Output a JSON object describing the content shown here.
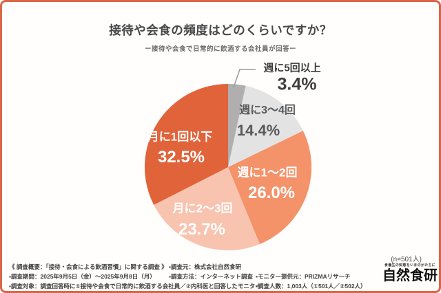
{
  "header": {
    "title": "接待や会食の頻度はどのくらいですか？",
    "subtitle": "ー接待や会食で日常的に飲酒する会社員が回答ー"
  },
  "chart_data": {
    "type": "pie",
    "title": "接待や会食の頻度はどのくらいですか？",
    "subtitle": "ー接待や会食で日常的に飲酒する会社員が回答ー",
    "sample_note": "(n=501人)",
    "start_angle_deg_from_12_oclock": 0,
    "direction": "clockwise",
    "segments": [
      {
        "label": "週に5回以上",
        "value": 3.4,
        "display": "3.4%",
        "color": "#b0aeae",
        "label_placement": "outside-callout"
      },
      {
        "label": "週に3〜4回",
        "value": 14.4,
        "display": "14.4%",
        "color": "#e4e3e3",
        "label_placement": "inside"
      },
      {
        "label": "週に1〜2回",
        "value": 26.0,
        "display": "26.0%",
        "color": "#f4926a",
        "label_placement": "inside"
      },
      {
        "label": "月に2〜3回",
        "value": 23.7,
        "display": "23.7%",
        "color": "#f8c3af",
        "label_placement": "inside"
      },
      {
        "label": "月に1回以下",
        "value": 32.5,
        "display": "32.5%",
        "color": "#e0633a",
        "label_placement": "inside"
      }
    ]
  },
  "footnote": {
    "items": [
      {
        "text": "《 調査概要：「接待・会食による飲酒習慣」に関する調査 》"
      },
      {
        "text": "▪調査元：株式会社自然食研"
      },
      {
        "text": "▪調査期間：2025年9月5日（金）〜2025年9月8日（月）"
      },
      {
        "text": "▪調査方法：インターネット調査"
      },
      {
        "text": "▪モニター提供元：PRIZMAリサーチ"
      },
      {
        "text": "▪調査対象：調査回答時に①接待や会食で日常的に飲酒する会社員／②内科医と回答したモニター"
      },
      {
        "text": "▪調査人数：1,003人（①501人／②502人）"
      }
    ]
  },
  "branding": {
    "tagline": "食養生の知恵をいまのかたちに",
    "logo": "自然食研"
  },
  "colors": {
    "frame_border": "#d9674a",
    "background": "#fffefd",
    "leader_line": "#9a9a9a",
    "title_text": "#474747"
  }
}
